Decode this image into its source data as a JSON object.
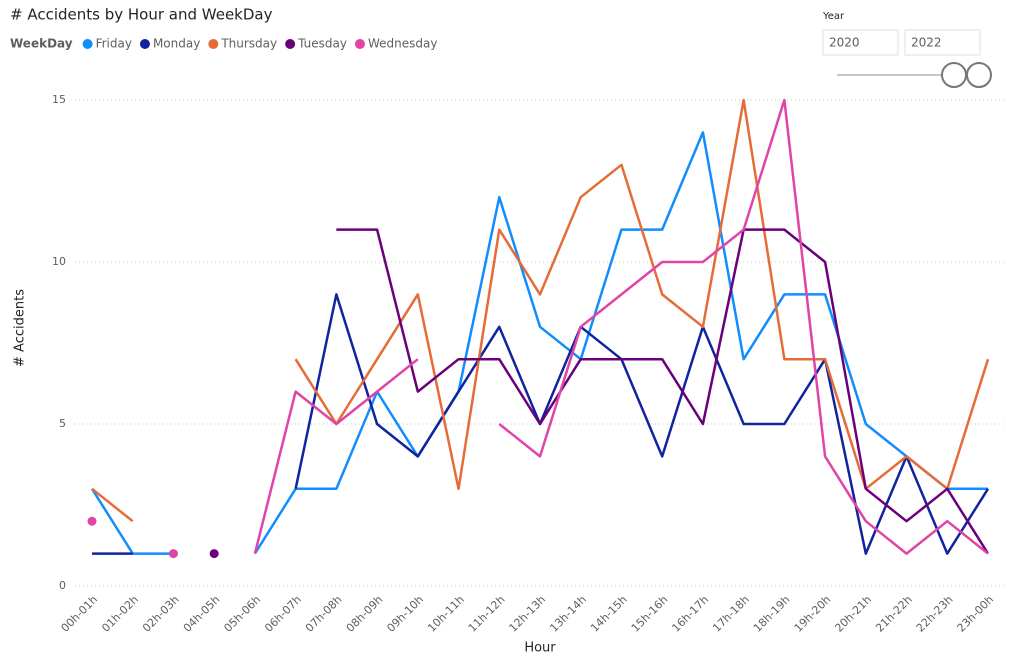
{
  "chart_data": {
    "type": "line",
    "title": "# Accidents by Hour and WeekDay",
    "legend_title": "WeekDay",
    "x_label": "Hour",
    "y_label": "# Accidents",
    "categories": [
      "00h-01h",
      "01h-02h",
      "02h-03h",
      "04h-05h",
      "05h-06h",
      "06h-07h",
      "07h-08h",
      "08h-09h",
      "09h-10h",
      "10h-11h",
      "11h-12h",
      "12h-13h",
      "13h-14h",
      "14h-15h",
      "15h-16h",
      "16h-17h",
      "17h-18h",
      "18h-19h",
      "19h-20h",
      "20h-21h",
      "21h-22h",
      "22h-23h",
      "23h-00h"
    ],
    "series": [
      {
        "name": "Friday",
        "color": "#118DFF",
        "values": [
          3,
          1,
          1,
          null,
          1,
          3,
          3,
          6,
          4,
          6,
          12,
          8,
          7,
          11,
          11,
          14,
          7,
          9,
          9,
          5,
          4,
          3,
          3
        ]
      },
      {
        "name": "Monday",
        "color": "#12239E",
        "values": [
          1,
          1,
          null,
          null,
          null,
          3,
          9,
          5,
          4,
          6,
          8,
          5,
          8,
          7,
          4,
          8,
          5,
          5,
          7,
          1,
          4,
          1,
          3
        ]
      },
      {
        "name": "Thursday",
        "color": "#E66C37",
        "values": [
          3,
          2,
          null,
          null,
          null,
          7,
          5,
          7,
          9,
          3,
          11,
          9,
          12,
          13,
          9,
          8,
          15,
          7,
          7,
          3,
          4,
          3,
          7
        ]
      },
      {
        "name": "Tuesday",
        "color": "#6B007B",
        "values": [
          null,
          null,
          null,
          1,
          null,
          null,
          11,
          11,
          6,
          7,
          7,
          5,
          7,
          7,
          7,
          5,
          11,
          11,
          10,
          3,
          2,
          3,
          1
        ]
      },
      {
        "name": "Wednesday",
        "color": "#E044A7",
        "values": [
          2,
          null,
          1,
          null,
          1,
          6,
          5,
          6,
          7,
          null,
          5,
          4,
          8,
          9,
          10,
          10,
          11,
          15,
          4,
          2,
          1,
          2,
          1
        ]
      }
    ],
    "ylim": [
      0,
      15
    ],
    "yticks": [
      0,
      5,
      10,
      15
    ],
    "grid": true,
    "legend": "top-left"
  },
  "slicer": {
    "title": "Year",
    "start": "2020",
    "end": "2022"
  }
}
